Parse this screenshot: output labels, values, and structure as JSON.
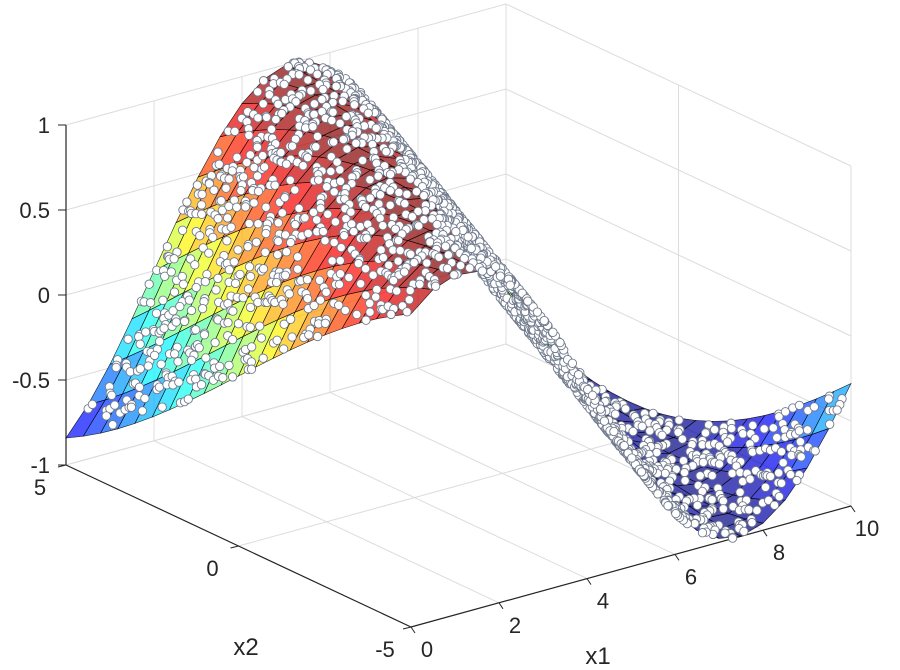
{
  "chart_data": {
    "type": "surface3d",
    "title": "",
    "xlabel": "x1",
    "ylabel": "x2",
    "zlabel": "",
    "xlim": [
      0,
      10
    ],
    "ylim": [
      -5,
      5
    ],
    "zlim": [
      -1,
      1
    ],
    "x_ticks": [
      {
        "value": 0,
        "label": "0"
      },
      {
        "value": 2,
        "label": "2"
      },
      {
        "value": 4,
        "label": "4"
      },
      {
        "value": 6,
        "label": "6"
      },
      {
        "value": 8,
        "label": "8"
      },
      {
        "value": 10,
        "label": "10"
      }
    ],
    "y_ticks": [
      {
        "value": -5,
        "label": "-5"
      },
      {
        "value": 0,
        "label": "0"
      },
      {
        "value": 5,
        "label": "5"
      }
    ],
    "z_ticks": [
      {
        "value": -1,
        "label": "-1"
      },
      {
        "value": -0.5,
        "label": "-0.5"
      },
      {
        "value": 0,
        "label": "0"
      },
      {
        "value": 0.5,
        "label": "0.5"
      },
      {
        "value": 1,
        "label": "1"
      }
    ],
    "grid": true,
    "box": "open-3d",
    "colormap": "jet",
    "surface": {
      "function": "z = sin(0.5*x1 - 0.2*x2)",
      "x_samples": [
        0,
        0.5,
        1,
        1.5,
        2,
        2.5,
        3,
        3.5,
        4,
        4.5,
        5,
        5.5,
        6,
        6.5,
        7,
        7.5,
        8,
        8.5,
        9,
        9.5,
        10
      ],
      "y_samples": [
        -5,
        -4.5,
        -4,
        -3.5,
        -3,
        -2.5,
        -2,
        -1.5,
        -1,
        -0.5,
        0,
        0.5,
        1,
        1.5,
        2,
        2.5,
        3,
        3.5,
        4,
        4.5,
        5
      ],
      "edge_color": "#000000",
      "face_alpha": 0.7
    },
    "scatter": {
      "marker": "circle",
      "face_color": "#ffffff",
      "edge_color": "#707a8c",
      "count": 2000,
      "on_surface": true
    }
  }
}
